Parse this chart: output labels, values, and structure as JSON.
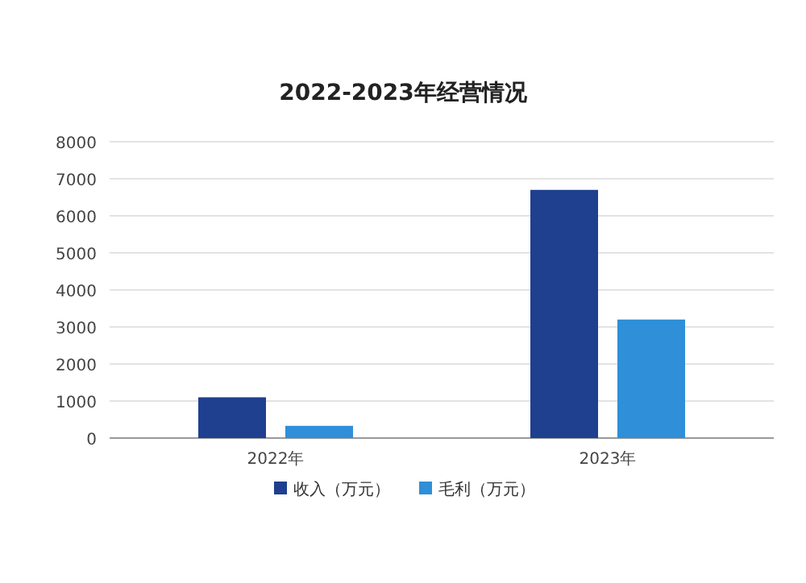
{
  "chart_data": {
    "type": "bar",
    "title": "2022-2023年经营情况",
    "categories": [
      "2022年",
      "2023年"
    ],
    "series": [
      {
        "name": "收入（万元）",
        "color": "#1f3f8f",
        "values": [
          1100,
          6700
        ]
      },
      {
        "name": "毛利（万元）",
        "color": "#2f8fd8",
        "values": [
          330,
          3200
        ]
      }
    ],
    "ylim": [
      0,
      8000
    ],
    "yticks": [
      0,
      1000,
      2000,
      3000,
      4000,
      5000,
      6000,
      7000,
      8000
    ],
    "grid": "y",
    "legend": "bottom"
  }
}
